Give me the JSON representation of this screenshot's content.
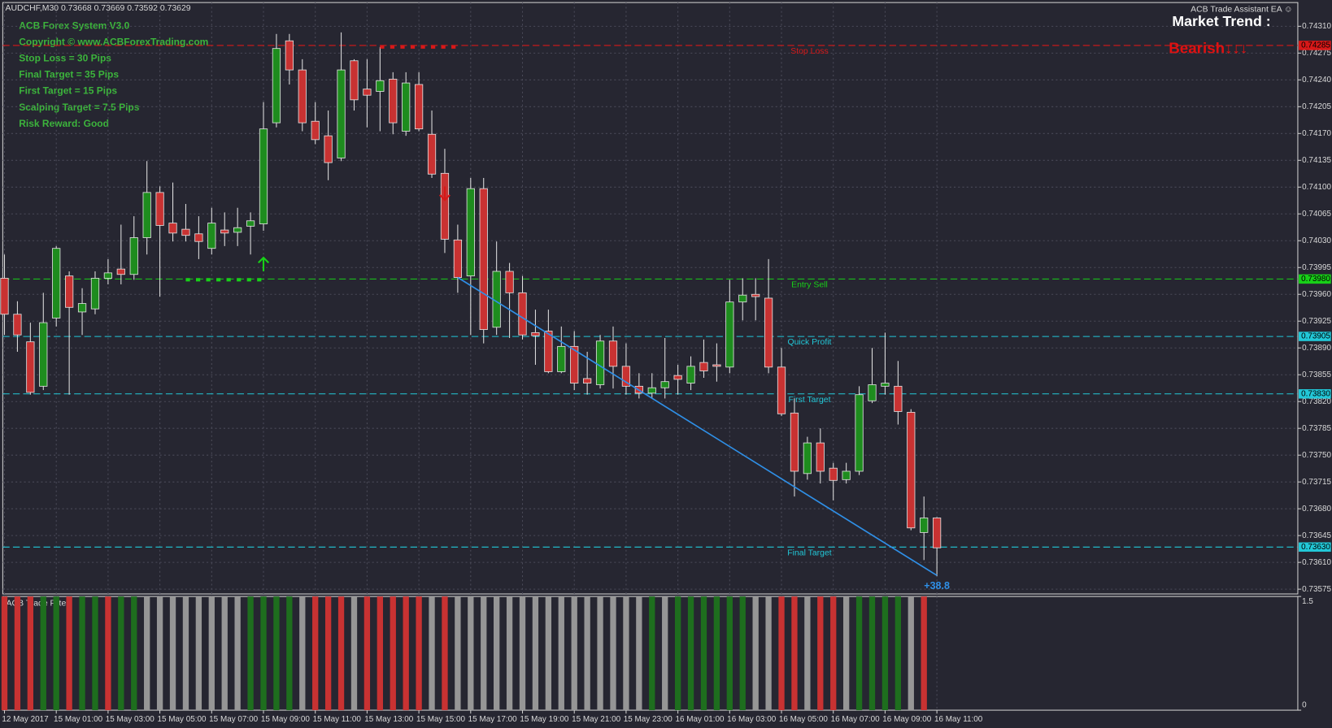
{
  "chart_data": {
    "type": "candlestick",
    "header": "AUDCHF,M30  0.73668 0.73669 0.73592 0.73629",
    "info": [
      "ACB Forex System V3.0",
      "Copyright ©  www.ACBForexTrading.com",
      "Stop Loss = 30 Pips",
      "Final Target = 35 Pips",
      "First Target = 15 Pips",
      "Scalping Target = 7.5 Pips",
      "Risk Reward: Good"
    ],
    "ea_title": "ACB Trade Assistant EA ☺",
    "trend_title": "Market Trend :",
    "trend_value": "Bearish↓↓↓",
    "categories": [
      "12 May 2017",
      null,
      null,
      null,
      "15 May 01:00",
      null,
      null,
      null,
      "15 May 03:00",
      null,
      null,
      null,
      "15 May 05:00",
      null,
      null,
      null,
      "15 May 07:00",
      null,
      null,
      null,
      "15 May 09:00",
      null,
      null,
      null,
      "15 May 11:00",
      null,
      null,
      null,
      "15 May 13:00",
      null,
      null,
      null,
      "15 May 15:00",
      null,
      null,
      null,
      "15 May 17:00",
      null,
      null,
      null,
      "15 May 19:00",
      null,
      null,
      null,
      "15 May 21:00",
      null,
      null,
      null,
      "15 May 23:00",
      null,
      null,
      null,
      "16 May 01:00",
      null,
      null,
      null,
      "16 May 03:00",
      null,
      null,
      null,
      "16 May 05:00",
      null,
      null,
      null,
      "16 May 07:00",
      null,
      null,
      null,
      "16 May 09:00",
      null,
      null,
      null,
      "16 May 11:00"
    ],
    "open": [
      0.73981,
      0.73934,
      0.73898,
      0.7384,
      0.73929,
      0.73984,
      0.73937,
      0.73941,
      0.73981,
      0.73993,
      0.73986,
      0.74034,
      0.74093,
      0.74053,
      0.74045,
      0.74039,
      0.7402,
      0.74044,
      0.74041,
      0.74049,
      0.74052,
      0.74184,
      0.74291,
      0.74253,
      0.74186,
      0.74167,
      0.74138,
      0.74265,
      0.74228,
      0.74225,
      0.74241,
      0.74173,
      0.74234,
      0.74169,
      0.74118,
      0.74031,
      0.73984,
      0.74098,
      0.73917,
      0.7399,
      0.73962,
      0.7391,
      0.73912,
      0.73859,
      0.73892,
      0.7385,
      0.73842,
      0.73899,
      0.73866,
      0.7384,
      0.73831,
      0.73838,
      0.73854,
      0.73844,
      0.73871,
      0.73868,
      0.73865,
      0.7395,
      0.7396,
      0.73955,
      0.73865,
      0.73805,
      0.73726,
      0.73766,
      0.73733,
      0.73718,
      0.73729,
      0.73821,
      0.7384,
      0.7384,
      0.73806,
      0.73649,
      0.73668
    ],
    "high": [
      0.74012,
      0.73951,
      0.73923,
      0.73962,
      0.74023,
      0.7399,
      0.73968,
      0.7399,
      0.74006,
      0.74051,
      0.74062,
      0.74134,
      0.74101,
      0.74106,
      0.74078,
      0.74062,
      0.74073,
      0.74067,
      0.74073,
      0.74067,
      0.74211,
      0.743,
      0.743,
      0.74267,
      0.74211,
      0.742,
      0.74302,
      0.74267,
      0.74267,
      0.74283,
      0.7425,
      0.7425,
      0.7425,
      0.742,
      0.7415,
      0.74051,
      0.74112,
      0.74112,
      0.74029,
      0.74001,
      0.73984,
      0.7394,
      0.7394,
      0.73918,
      0.73912,
      0.73885,
      0.73907,
      0.73918,
      0.73896,
      0.73857,
      0.73857,
      0.73903,
      0.73868,
      0.73879,
      0.73901,
      0.73896,
      0.73979,
      0.73981,
      0.73981,
      0.74006,
      0.7389,
      0.73824,
      0.73774,
      0.73785,
      0.7374,
      0.7374,
      0.7384,
      0.7389,
      0.7391,
      0.73873,
      0.7381,
      0.73696,
      0.73669
    ],
    "low": [
      0.73907,
      0.73885,
      0.73829,
      0.73835,
      0.73918,
      0.73829,
      0.73907,
      0.73934,
      0.73973,
      0.73973,
      0.73979,
      0.74012,
      0.73957,
      0.74029,
      0.74029,
      0.74006,
      0.74012,
      0.74023,
      0.74023,
      0.74012,
      0.74043,
      0.74178,
      0.74234,
      0.74173,
      0.74156,
      0.74109,
      0.74134,
      0.742,
      0.74178,
      0.74173,
      0.74169,
      0.74167,
      0.74173,
      0.74112,
      0.74014,
      0.73962,
      0.73907,
      0.73896,
      0.73907,
      0.73903,
      0.73901,
      0.73868,
      0.73857,
      0.73857,
      0.73835,
      0.73829,
      0.73837,
      0.73837,
      0.73829,
      0.73824,
      0.73824,
      0.73824,
      0.73829,
      0.73835,
      0.73851,
      0.73846,
      0.73857,
      0.73926,
      0.73926,
      0.73857,
      0.73801,
      0.73696,
      0.73718,
      0.73713,
      0.73691,
      0.73713,
      0.73724,
      0.73818,
      0.73829,
      0.7379,
      0.73652,
      0.73613,
      0.73592
    ],
    "close": [
      0.73934,
      0.73907,
      0.73832,
      0.73923,
      0.7402,
      0.73943,
      0.73948,
      0.73981,
      0.73988,
      0.73986,
      0.74034,
      0.74093,
      0.7405,
      0.7404,
      0.74037,
      0.74029,
      0.74053,
      0.7404,
      0.74047,
      0.74056,
      0.74176,
      0.74281,
      0.74253,
      0.74184,
      0.74162,
      0.74132,
      0.74253,
      0.74214,
      0.7422,
      0.74239,
      0.74184,
      0.74236,
      0.74176,
      0.74117,
      0.74032,
      0.73982,
      0.74098,
      0.73914,
      0.7399,
      0.73962,
      0.73907,
      0.73906,
      0.73859,
      0.73892,
      0.73844,
      0.73844,
      0.73899,
      0.73866,
      0.7384,
      0.73831,
      0.73838,
      0.73846,
      0.73849,
      0.73866,
      0.7386,
      0.73866,
      0.7395,
      0.73959,
      0.73957,
      0.73865,
      0.73804,
      0.73729,
      0.73766,
      0.73729,
      0.73717,
      0.73729,
      0.73829,
      0.73842,
      0.73844,
      0.73807,
      0.73655,
      0.73668,
      0.73629
    ],
    "up_color": "#1e8c1e",
    "down_color": "#c83232",
    "ylim": [
      0.73571,
      0.74341
    ],
    "yticks": [
      {
        "value": 0.7431,
        "label": "0.74310"
      },
      0.74275,
      {
        "value": 0.7424,
        "label": "0.74240"
      },
      0.74205,
      {
        "value": 0.7417,
        "label": "0.74170"
      },
      0.74135,
      {
        "value": 0.741,
        "label": "0.74100"
      },
      0.74065,
      {
        "value": 0.7403,
        "label": "0.74030"
      },
      0.73995,
      {
        "value": 0.7396,
        "label": "0.73960"
      },
      0.73925,
      {
        "value": 0.7389,
        "label": "0.73890"
      },
      0.73855,
      {
        "value": 0.7382,
        "label": "0.73820"
      },
      0.73785,
      {
        "value": 0.7375,
        "label": "0.73750"
      },
      0.73715,
      {
        "value": 0.7368,
        "label": "0.73680"
      },
      0.73645,
      {
        "value": 0.7361,
        "label": "0.73610"
      },
      0.73575
    ],
    "grid": true,
    "levels": [
      {
        "label": "Stop Loss",
        "value": 0.74285,
        "value_label": "0.74285",
        "color": "#d81818"
      },
      {
        "label": "Entry Sell",
        "value": 0.7398,
        "value_label": "0.73980",
        "color": "#18d018"
      },
      {
        "label": "Quick Profit",
        "value": 0.73905,
        "value_label": "0.73905",
        "color": "#22c8d8"
      },
      {
        "label": "First Target",
        "value": 0.7383,
        "value_label": "0.73830",
        "color": "#22c8d8"
      },
      {
        "label": "Final Target",
        "value": 0.7363,
        "value_label": "0.73630",
        "color": "#22c8d8"
      }
    ],
    "trendline": {
      "x": [
        35,
        72
      ],
      "values": [
        0.73982,
        0.73593
      ],
      "color": "#2f8fe6",
      "label": "+38.8"
    },
    "arrows": [
      {
        "x": 20,
        "value": 0.73999,
        "direction": "up",
        "color": "#18d018"
      },
      {
        "x": 34,
        "value": 0.74092,
        "direction": "down",
        "color": "#d81818"
      }
    ],
    "dash_markers": [
      {
        "x": [
          14,
          20
        ],
        "value": 0.73979,
        "color": "#18d018"
      },
      {
        "x": [
          29,
          35
        ],
        "value": 0.74283,
        "color": "#d81818"
      }
    ],
    "filter": {
      "title": "ACB Trade Filter",
      "ylim": [
        0,
        1.5
      ],
      "yticks": [
        1.5,
        0
      ],
      "values": [
        1.5,
        1.5,
        1.5,
        1.5,
        1.5,
        1.5,
        1.5,
        1.5,
        1.5,
        1.5,
        1.5,
        1.5,
        1.5,
        1.5,
        1.5,
        1.5,
        1.5,
        1.5,
        1.5,
        1.5,
        1.5,
        1.5,
        1.5,
        1.5,
        1.5,
        1.5,
        1.5,
        1.5,
        1.5,
        1.5,
        1.5,
        1.5,
        1.5,
        1.5,
        1.5,
        1.5,
        1.5,
        1.5,
        1.5,
        1.5,
        1.5,
        1.5,
        1.5,
        1.5,
        1.5,
        1.5,
        1.5,
        1.5,
        1.5,
        1.5,
        1.5,
        1.5,
        1.5,
        1.5,
        1.5,
        1.5,
        1.5,
        1.5,
        1.5,
        1.5,
        1.5,
        1.5,
        1.5,
        1.5,
        1.5,
        1.5,
        1.5,
        1.5,
        1.5,
        1.5,
        1.5,
        1.5,
        null
      ],
      "colors": [
        "#c83232",
        "#c83232",
        "#c83232",
        "#1e6e1e",
        "#1e6e1e",
        "#c83232",
        "#1e6e1e",
        "#1e6e1e",
        "#c83232",
        "#1e6e1e",
        "#1e6e1e",
        "#969696",
        "#969696",
        "#969696",
        "#969696",
        "#969696",
        "#969696",
        "#969696",
        "#969696",
        "#1e6e1e",
        "#1e6e1e",
        "#1e6e1e",
        "#1e6e1e",
        "#969696",
        "#c83232",
        "#c83232",
        "#c83232",
        "#969696",
        "#c83232",
        "#c83232",
        "#c83232",
        "#c83232",
        "#c83232",
        "#969696",
        "#c83232",
        "#969696",
        "#969696",
        "#969696",
        "#969696",
        "#969696",
        "#969696",
        "#969696",
        "#969696",
        "#969696",
        "#969696",
        "#969696",
        "#969696",
        "#969696",
        "#969696",
        "#969696",
        "#1e6e1e",
        "#969696",
        "#1e6e1e",
        "#1e6e1e",
        "#1e6e1e",
        "#1e6e1e",
        "#1e6e1e",
        "#1e6e1e",
        "#969696",
        "#969696",
        "#c83232",
        "#c83232",
        "#969696",
        "#c83232",
        "#c83232",
        "#969696",
        "#1e6e1e",
        "#1e6e1e",
        "#1e6e1e",
        "#1e6e1e",
        "#969696",
        "#c83232",
        null
      ]
    }
  }
}
